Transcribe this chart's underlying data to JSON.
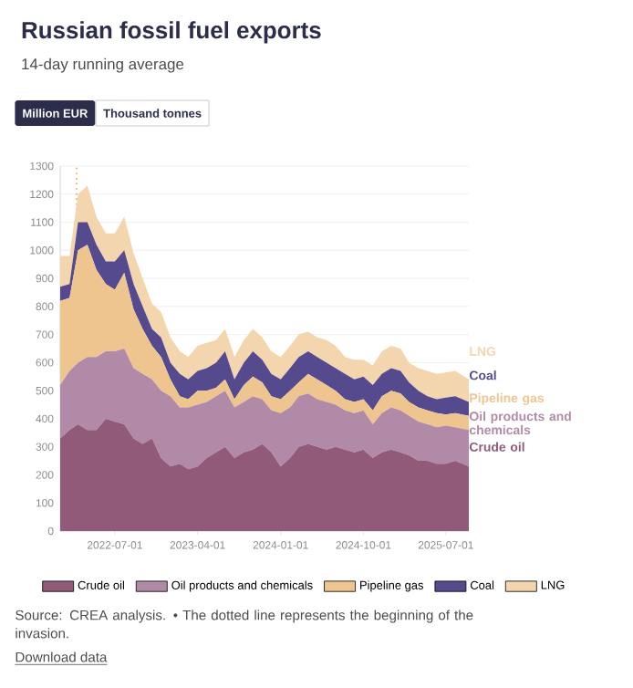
{
  "chart_data": {
    "type": "area",
    "stacked": true,
    "title": "Russian fossil fuel exports",
    "subtitle": "14-day running average",
    "annotations": [
      "Million EUR",
      "Thousand tonnes",
      "Source: CREA analysis. • The dotted line represents the beginning of the invasion.",
      "Download data"
    ],
    "x": [
      "2022-01-01",
      "2022-02-01",
      "2022-03-01",
      "2022-04-01",
      "2022-05-01",
      "2022-06-01",
      "2022-07-01",
      "2022-08-01",
      "2022-09-01",
      "2022-10-01",
      "2022-11-01",
      "2022-12-01",
      "2023-01-01",
      "2023-02-01",
      "2023-03-01",
      "2023-04-01",
      "2023-05-01",
      "2023-06-01",
      "2023-07-01",
      "2023-08-01",
      "2023-09-01",
      "2023-10-01",
      "2023-11-01",
      "2023-12-01",
      "2024-01-01",
      "2024-02-01",
      "2024-03-01",
      "2024-04-01",
      "2024-05-01",
      "2024-06-01",
      "2024-07-01",
      "2024-08-01",
      "2024-09-01",
      "2024-10-01",
      "2024-11-01",
      "2024-12-01",
      "2025-01-01",
      "2025-02-01",
      "2025-03-01",
      "2025-04-01",
      "2025-05-01",
      "2025-06-01",
      "2025-07-01",
      "2025-08-01",
      "2025-09-15"
    ],
    "series": [
      {
        "name": "Crude oil",
        "color": "#905a78",
        "values": [
          330,
          360,
          380,
          360,
          360,
          400,
          390,
          380,
          330,
          310,
          330,
          260,
          230,
          240,
          220,
          230,
          260,
          280,
          300,
          260,
          280,
          290,
          310,
          280,
          230,
          260,
          300,
          310,
          300,
          290,
          300,
          290,
          280,
          290,
          260,
          280,
          290,
          280,
          270,
          250,
          250,
          240,
          240,
          250,
          230
        ]
      },
      {
        "name": "Oil products and chemicals",
        "color": "#b08aa6",
        "values": [
          190,
          210,
          220,
          260,
          260,
          240,
          250,
          270,
          250,
          250,
          210,
          240,
          250,
          200,
          220,
          220,
          200,
          200,
          200,
          180,
          180,
          190,
          160,
          150,
          190,
          180,
          180,
          180,
          170,
          170,
          150,
          140,
          140,
          140,
          120,
          140,
          150,
          150,
          140,
          140,
          130,
          130,
          135,
          120,
          130
        ]
      },
      {
        "name": "Pipeline gas",
        "color": "#eec48f",
        "values": [
          300,
          260,
          400,
          400,
          310,
          240,
          220,
          270,
          210,
          160,
          120,
          120,
          60,
          40,
          30,
          50,
          40,
          30,
          40,
          30,
          60,
          70,
          60,
          50,
          50,
          60,
          50,
          70,
          70,
          60,
          50,
          40,
          40,
          40,
          50,
          60,
          60,
          60,
          50,
          50,
          50,
          50,
          40,
          50,
          50
        ]
      },
      {
        "name": "Coal",
        "color": "#554a8e",
        "values": [
          50,
          50,
          100,
          80,
          90,
          80,
          100,
          80,
          90,
          80,
          60,
          70,
          60,
          80,
          70,
          70,
          80,
          90,
          100,
          70,
          80,
          90,
          80,
          80,
          70,
          80,
          90,
          80,
          80,
          80,
          80,
          90,
          80,
          80,
          90,
          80,
          80,
          80,
          70,
          60,
          50,
          50,
          60,
          60,
          50
        ]
      },
      {
        "name": "LNG",
        "color": "#f3d5ae",
        "values": [
          110,
          100,
          100,
          130,
          100,
          100,
          100,
          120,
          110,
          100,
          90,
          90,
          90,
          80,
          80,
          90,
          90,
          80,
          80,
          80,
          80,
          80,
          80,
          80,
          80,
          80,
          80,
          70,
          70,
          80,
          80,
          60,
          70,
          60,
          70,
          80,
          80,
          80,
          70,
          80,
          90,
          90,
          90,
          90,
          80
        ]
      }
    ],
    "xlim": [
      "2022-01-01",
      "2025-09-15"
    ],
    "xticks": [
      "2022-07-01",
      "2023-04-01",
      "2024-01-01",
      "2024-10-01",
      "2025-07-01"
    ],
    "ylim": [
      0,
      1300
    ],
    "yticks": [
      0,
      100,
      200,
      300,
      400,
      500,
      600,
      700,
      800,
      900,
      1000,
      1100,
      1200,
      1300
    ],
    "ref_lines": [
      {
        "axis": "x",
        "value": "2022-02-24",
        "color": "#f0a060",
        "line_style": "dotted"
      }
    ],
    "grid": "y",
    "legend": "bottom"
  }
}
